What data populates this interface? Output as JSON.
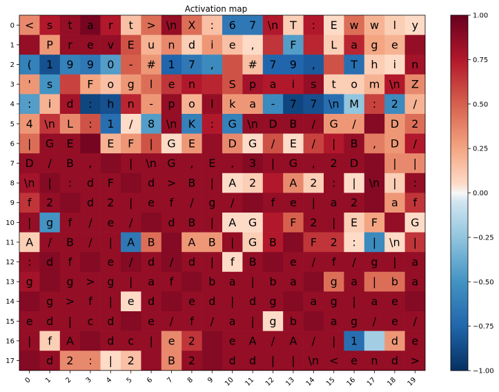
{
  "chart_data": {
    "type": "heatmap",
    "title": "Activation map",
    "xlabel": "",
    "ylabel": "",
    "x_ticks": [
      0,
      1,
      2,
      3,
      4,
      5,
      6,
      7,
      8,
      9,
      10,
      11,
      12,
      13,
      14,
      15,
      16,
      17,
      18,
      19
    ],
    "y_ticks": [
      0,
      1,
      2,
      3,
      4,
      5,
      6,
      7,
      8,
      9,
      10,
      11,
      12,
      13,
      14,
      15,
      16,
      17
    ],
    "colorscale": "RdBu_r",
    "colorbar": {
      "range": [
        -1.0,
        1.0
      ],
      "ticks": [
        "1.00",
        "0.75",
        "0.50",
        "0.25",
        "0.00",
        "−0.25",
        "−0.50",
        "−0.75",
        "−1.00"
      ],
      "tick_values": [
        1.0,
        0.75,
        0.5,
        0.25,
        0.0,
        -0.25,
        -0.5,
        -0.75,
        -1.0
      ]
    },
    "labels": [
      [
        "<",
        "s",
        "t",
        "a",
        "r",
        "t",
        ">",
        "\\n",
        "X",
        ":",
        "6",
        "7",
        "\\n",
        "T",
        ":",
        "E",
        "w",
        "w",
        "l",
        "y"
      ],
      [
        "",
        "P",
        "r",
        "e",
        "v",
        "E",
        "u",
        "n",
        "d",
        "i",
        "e",
        ",",
        "",
        "F",
        "",
        "L",
        "a",
        "g",
        "e",
        ""
      ],
      [
        "(",
        "1",
        "9",
        "9",
        "0",
        "-",
        "#",
        "1",
        "7",
        ",",
        "",
        "#",
        "7",
        "9",
        ",",
        "",
        "T",
        "h",
        "i",
        "n"
      ],
      [
        "'",
        "s",
        "",
        "F",
        "o",
        "g",
        "l",
        "e",
        "n",
        "",
        "S",
        "p",
        "a",
        "i",
        "s",
        "t",
        "o",
        "m",
        "\\n",
        "Z"
      ],
      [
        ":",
        "i",
        "d",
        ":",
        "h",
        "n",
        "-",
        "p",
        "o",
        "l",
        "k",
        "a",
        "-",
        "7",
        "7",
        "\\n",
        "M",
        ":",
        "2",
        "/"
      ],
      [
        "4",
        "\\n",
        "L",
        ":",
        "1",
        "/",
        "8",
        "\\n",
        "K",
        ":",
        "G",
        "\\n",
        "D",
        "B",
        "/",
        "G",
        "/",
        "",
        "D",
        "2"
      ],
      [
        "|",
        "G",
        "E",
        "",
        "E",
        "F",
        "|",
        "G",
        "E",
        "",
        "D",
        "G",
        "/",
        "E",
        "/",
        "|",
        "B",
        ",",
        "D",
        "/"
      ],
      [
        "D",
        "/",
        "B",
        ",",
        "",
        "|",
        "\\n",
        "G",
        ",",
        "E",
        ",",
        "3",
        "|",
        "G",
        ",",
        "2",
        "D",
        "",
        "|",
        "|"
      ],
      [
        "\\n",
        "|",
        ":",
        "d",
        "F",
        "",
        "d",
        ">",
        "B",
        "|",
        "A",
        "2",
        "",
        "A",
        "2",
        ":",
        "|",
        "\\n",
        "|",
        ":"
      ],
      [
        "f",
        "2",
        "",
        "d",
        "2",
        "|",
        "e",
        "f",
        "/",
        "g",
        "/",
        "",
        "f",
        "e",
        "|",
        "a",
        "2",
        "",
        "a",
        "f"
      ],
      [
        "|",
        "g",
        "f",
        "/",
        "e",
        "/",
        "",
        "d",
        "B",
        "|",
        "A",
        "G",
        "",
        "F",
        "2",
        "|",
        "E",
        "F",
        "",
        "G"
      ],
      [
        "A",
        "/",
        "B",
        "/",
        "|",
        "A",
        "B",
        "",
        "A",
        "B",
        "|",
        "G",
        "B",
        "",
        "F",
        "2",
        ":",
        "|",
        "\\n",
        "|"
      ],
      [
        ":",
        "d",
        "f",
        "",
        "e",
        "/",
        "d",
        "/",
        "d",
        "|",
        "f",
        "B",
        "",
        "e",
        "/",
        "f",
        "/",
        "g",
        "|",
        "a"
      ],
      [
        "g",
        "",
        "g",
        ">",
        "g",
        "|",
        "a",
        "f",
        "",
        "b",
        "a",
        "|",
        "b",
        "a",
        "",
        "g",
        "a",
        "|",
        "b",
        "a"
      ],
      [
        "",
        "g",
        ">",
        "f",
        "|",
        "e",
        "d",
        "",
        "e",
        "d",
        "|",
        "d",
        "g",
        "",
        "a",
        "g",
        "|",
        "a",
        "e",
        ""
      ],
      [
        "e",
        "d",
        "|",
        "c",
        "d",
        "",
        "e",
        "/",
        "f",
        "/",
        "a",
        "|",
        "g",
        "b",
        "",
        "a",
        "g",
        "/",
        "e",
        "/"
      ],
      [
        "|",
        "f",
        "A",
        "",
        "d",
        "c",
        "|",
        "e",
        "2",
        "",
        "e",
        "A",
        "/",
        "A",
        "/",
        "|",
        "1",
        "",
        "d",
        "e"
      ],
      [
        "",
        "d",
        "2",
        ":",
        "|",
        "2",
        "",
        "B",
        "2",
        "",
        "d",
        "d",
        "|",
        "|",
        "\\n",
        "<",
        "e",
        "n",
        "d",
        ">"
      ]
    ],
    "values": [
      [
        0.35,
        0.75,
        0.85,
        0.95,
        0.75,
        0.15,
        0.45,
        0.85,
        0.45,
        0.15,
        -0.65,
        -0.65,
        0.75,
        0.1,
        0.75,
        0.05,
        0.45,
        0.2,
        0.1,
        0.05
      ],
      [
        0.85,
        0.3,
        0.85,
        0.85,
        0.85,
        0.55,
        0.2,
        0.35,
        0.1,
        0.3,
        0.15,
        0.05,
        0.65,
        -0.45,
        0.7,
        0.1,
        0.7,
        0.25,
        0.2,
        0.85
      ],
      [
        -0.6,
        -0.85,
        -0.6,
        -0.65,
        -0.45,
        0.5,
        0.3,
        -0.75,
        -0.65,
        -0.55,
        0.55,
        0.15,
        -0.75,
        -0.75,
        -0.8,
        0.55,
        -0.7,
        0.1,
        0.05,
        0.8
      ],
      [
        0.3,
        -0.5,
        0.6,
        0.25,
        0.15,
        0.3,
        0.45,
        0.65,
        0.75,
        0.7,
        0.55,
        0.8,
        0.75,
        0.75,
        0.85,
        0.1,
        0.1,
        0.2,
        0.75,
        0.35
      ],
      [
        -0.45,
        0.2,
        0.8,
        -0.9,
        -0.85,
        0.7,
        0.3,
        0.85,
        0.2,
        0.85,
        0.3,
        0.3,
        -0.55,
        -0.9,
        -0.85,
        -0.7,
        -0.25,
        0.6,
        -0.55,
        0.2
      ],
      [
        0.3,
        0.65,
        0.35,
        0.55,
        -0.7,
        0.05,
        -0.45,
        0.85,
        -0.6,
        0.75,
        -0.6,
        0.85,
        0.85,
        0.85,
        0.85,
        0.3,
        0.3,
        0.9,
        0.3,
        0.45
      ],
      [
        0.45,
        0.85,
        0.85,
        0.95,
        0.2,
        0.3,
        0.55,
        0.05,
        0.3,
        0.85,
        0.35,
        0.05,
        0.55,
        0.05,
        0.6,
        0.75,
        0.85,
        0.4,
        0.3,
        0.75
      ],
      [
        0.85,
        0.85,
        0.85,
        0.85,
        0.9,
        0.85,
        0.85,
        0.85,
        0.85,
        0.85,
        0.85,
        0.9,
        0.85,
        0.85,
        0.85,
        0.85,
        0.85,
        0.9,
        0.35,
        0.35
      ],
      [
        0.8,
        0.9,
        0.85,
        0.85,
        0.85,
        0.9,
        0.85,
        0.85,
        0.85,
        0.85,
        0.05,
        0.1,
        0.75,
        0.35,
        0.1,
        0.85,
        0.05,
        0.9,
        0.1,
        0.85
      ],
      [
        0.65,
        0.85,
        0.9,
        0.85,
        0.85,
        0.85,
        0.85,
        0.85,
        0.85,
        0.85,
        0.85,
        0.9,
        0.85,
        0.85,
        0.85,
        0.85,
        0.85,
        0.9,
        0.3,
        0.65
      ],
      [
        0.85,
        -0.5,
        0.85,
        0.85,
        0.85,
        0.85,
        0.9,
        0.85,
        0.85,
        0.85,
        0.05,
        0.05,
        0.75,
        0.5,
        0.85,
        0.85,
        0.1,
        0.25,
        0.85,
        0.05
      ],
      [
        0.1,
        0.85,
        0.85,
        0.85,
        0.85,
        -0.65,
        0.45,
        0.9,
        0.3,
        0.3,
        0.85,
        0.1,
        0.75,
        0.9,
        0.65,
        0.65,
        0.05,
        -0.55,
        0.05,
        0.65
      ],
      [
        0.85,
        0.9,
        0.85,
        0.9,
        0.85,
        0.9,
        0.85,
        0.9,
        0.85,
        0.85,
        0.05,
        0.85,
        0.9,
        0.85,
        0.85,
        0.85,
        0.85,
        0.85,
        0.85,
        0.85
      ],
      [
        0.8,
        0.9,
        0.85,
        0.85,
        0.85,
        0.85,
        0.85,
        0.85,
        0.9,
        0.85,
        0.85,
        0.85,
        0.85,
        0.85,
        0.9,
        0.45,
        0.85,
        0.45,
        0.45,
        0.85
      ],
      [
        0.9,
        0.85,
        0.85,
        0.85,
        0.85,
        0.05,
        0.85,
        0.9,
        0.85,
        0.85,
        0.85,
        0.85,
        0.85,
        0.9,
        0.85,
        0.85,
        0.85,
        0.85,
        0.85,
        0.9
      ],
      [
        0.85,
        0.85,
        0.85,
        0.85,
        0.85,
        0.9,
        0.85,
        0.85,
        0.85,
        0.85,
        0.85,
        0.85,
        0.05,
        0.85,
        0.9,
        0.85,
        0.85,
        0.85,
        0.85,
        0.85
      ],
      [
        0.85,
        0.1,
        0.85,
        0.9,
        0.85,
        0.85,
        0.85,
        0.35,
        0.65,
        0.9,
        0.85,
        0.85,
        0.85,
        0.85,
        0.85,
        0.85,
        -0.7,
        -0.2,
        0.3,
        0.85
      ],
      [
        0.9,
        0.85,
        0.35,
        0.35,
        0.05,
        0.15,
        0.85,
        0.35,
        0.85,
        0.9,
        0.85,
        0.85,
        0.85,
        0.85,
        0.85,
        0.85,
        0.85,
        0.85,
        0.85,
        0.85
      ]
    ]
  }
}
